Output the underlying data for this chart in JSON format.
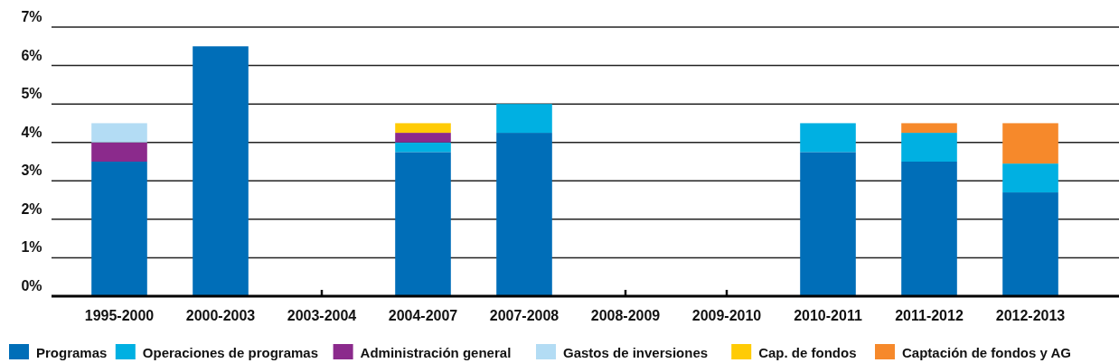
{
  "chart_data": {
    "type": "bar",
    "stacked": true,
    "categories": [
      "1995-2000",
      "2000-2003",
      "2003-2004",
      "2004-2007",
      "2007-2008",
      "2008-2009",
      "2009-2010",
      "2010-2011",
      "2011-2012",
      "2012-2013"
    ],
    "series": [
      {
        "name": "Programas",
        "color": "#006eb8",
        "values": [
          3.5,
          6.5,
          0.02,
          3.75,
          4.25,
          0.02,
          0,
          3.75,
          3.5,
          2.7
        ]
      },
      {
        "name": "Operaciones de programas",
        "color": "#00b0e2",
        "values": [
          0,
          0,
          0,
          0.25,
          0.75,
          0,
          0,
          0.75,
          0.75,
          0.75
        ]
      },
      {
        "name": "Administración general",
        "color": "#8b2a8c",
        "values": [
          0.5,
          0,
          0,
          0.25,
          0,
          0,
          0,
          0,
          0,
          0
        ]
      },
      {
        "name": "Gastos de inversiones",
        "color": "#b3dcf4",
        "values": [
          0.5,
          0,
          0,
          0,
          0,
          0,
          0,
          0,
          0,
          0
        ]
      },
      {
        "name": "Cap. de fondos",
        "color": "#ffcb05",
        "values": [
          0,
          0,
          0,
          0.25,
          0,
          0,
          0,
          0,
          0,
          0
        ]
      },
      {
        "name": "Captación de fondos y AG",
        "color": "#f6892b",
        "values": [
          0,
          0,
          0,
          0,
          0,
          0,
          0,
          0,
          0.25,
          1.05
        ]
      }
    ],
    "ylim": [
      0,
      7
    ],
    "yticks": [
      {
        "value": 0,
        "label": "0%"
      },
      {
        "value": 1,
        "label": "1%"
      },
      {
        "value": 2,
        "label": "2%"
      },
      {
        "value": 3,
        "label": "3%"
      },
      {
        "value": 4,
        "label": "4%"
      },
      {
        "value": 5,
        "label": "5%"
      },
      {
        "value": 6,
        "label": "6%"
      },
      {
        "value": 7,
        "label": "7%"
      }
    ],
    "grid": "y",
    "legend": "bottom"
  }
}
